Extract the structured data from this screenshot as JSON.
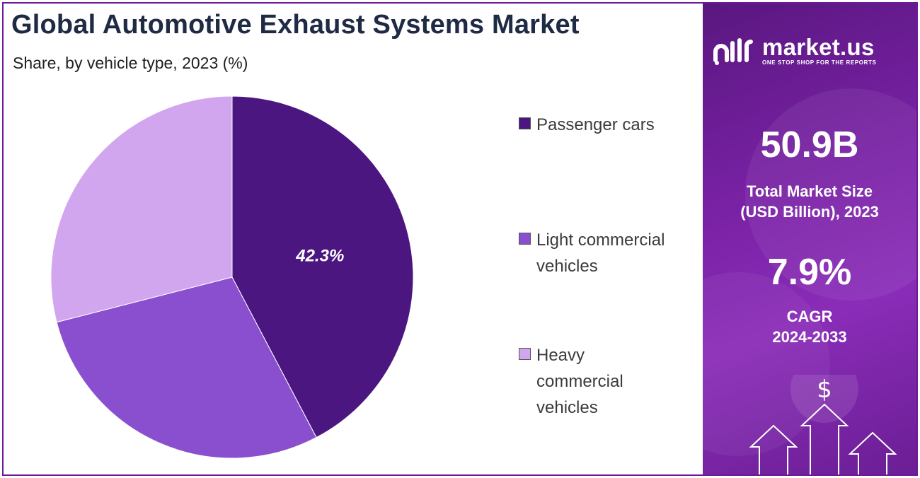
{
  "title": "Global Automotive Exhaust Systems Market",
  "subtitle": "Share, by vehicle type, 2023 (%)",
  "chart_data": {
    "type": "pie",
    "title": "Global Automotive Exhaust Systems Market",
    "subtitle": "Share, by vehicle type, 2023 (%)",
    "slices": [
      {
        "name": "Passenger cars",
        "value": 42.3,
        "label": "42.3%",
        "color": "#4b1680"
      },
      {
        "name": "Light commercial vehicles",
        "value": 28.7,
        "label": "",
        "color": "#8a4fcf"
      },
      {
        "name": "Heavy commercial vehicles",
        "value": 29.0,
        "label": "",
        "color": "#d2a6ef"
      }
    ],
    "legend_position": "right"
  },
  "legend": [
    {
      "label": "Passenger cars",
      "color": "#4b1680"
    },
    {
      "label": "Light commercial vehicles",
      "color": "#8a4fcf"
    },
    {
      "label": "Heavy commercial vehicles",
      "color": "#d2a6ef"
    }
  ],
  "panel": {
    "logo_name": "market.us",
    "logo_tagline": "ONE STOP SHOP FOR THE REPORTS",
    "market_size_value": "50.9B",
    "market_size_label_line1": "Total Market Size",
    "market_size_label_line2": "(USD Billion), 2023",
    "cagr_value": "7.9%",
    "cagr_label_line1": "CAGR",
    "cagr_label_line2": "2024-2033",
    "dollar_symbol": "$"
  },
  "colors": {
    "frame": "#6a1b9a",
    "title": "#1f2a44",
    "panel": "#7a22a6"
  }
}
